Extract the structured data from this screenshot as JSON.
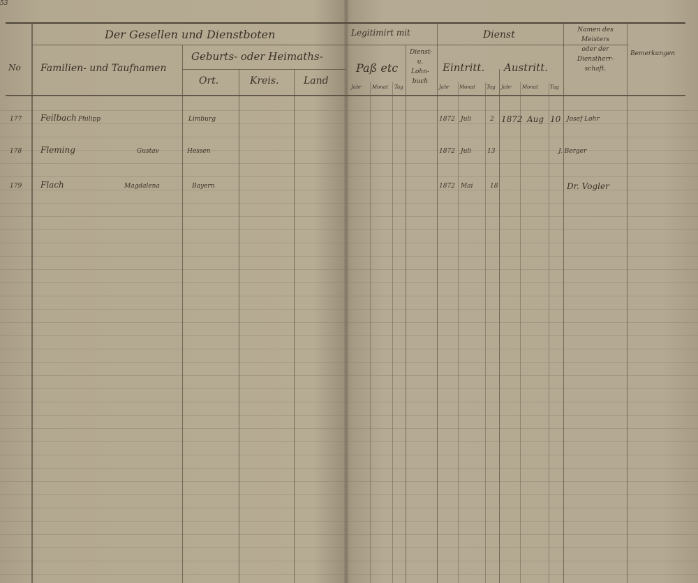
{
  "page_number": "53",
  "header": {
    "group_title": "Der Gesellen und Dienstboten",
    "col_number": "No",
    "col_names": "Familien- und Taufnamen",
    "birth_group": "Geburts- oder Heimaths-",
    "col_ort": "Ort.",
    "col_kreis": "Kreis.",
    "col_land": "Land",
    "legit_group": "Legitimirt mit",
    "col_pass": "Paß etc",
    "col_dienstbuch": [
      "Dienst-",
      "u.",
      "Lohn-",
      "buch"
    ],
    "dienst_group": "Dienst",
    "col_eintritt": "Eintritt.",
    "col_austritt": "Austritt.",
    "col_meister": [
      "Namen des",
      "Meisters",
      "oder der",
      "Dienstherr-",
      "schaft."
    ],
    "col_bemerkungen": "Bemerkungen",
    "sub_jahr": "Jahr",
    "sub_monat": "Monat",
    "sub_tag": "Tag"
  },
  "rows": [
    {
      "no": "177",
      "surname": "Feilbach",
      "given": "Philipp",
      "ort": "Limburg",
      "in_year": "1872",
      "in_month": "Juli",
      "in_day": "2",
      "out_year": "1872",
      "out_month": "Aug",
      "out_day": "10",
      "master": "Josef Lohr"
    },
    {
      "no": "178",
      "surname": "Fleming",
      "given": "Gustav",
      "ort": "Hessen",
      "in_year": "1872",
      "in_month": "Juli",
      "in_day": "13",
      "out_year": "",
      "out_month": "",
      "out_day": "",
      "master": "J. Berger"
    },
    {
      "no": "179",
      "surname": "Flach",
      "given": "Magdalena",
      "ort": "Bayern",
      "in_year": "1872",
      "in_month": "Mai",
      "in_day": "18",
      "out_year": "",
      "out_month": "",
      "out_day": "",
      "master": "Dr. Vogler"
    }
  ]
}
